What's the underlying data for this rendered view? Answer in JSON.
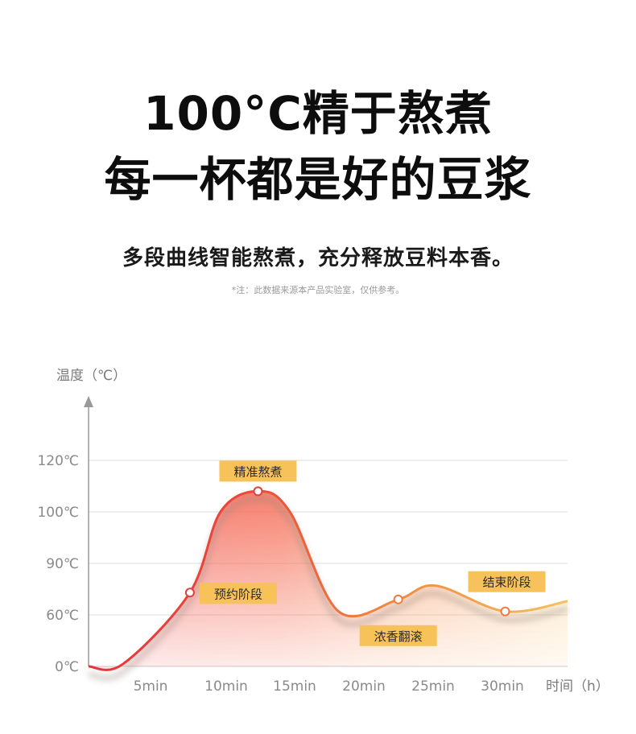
{
  "header": {
    "title_line1": "100°C精于熬煮",
    "title_line2": "每一杯都是好的豆浆",
    "subtitle": "多段曲线智能熬煮，充分释放豆料本香。",
    "note": "*注：此数据来源本产品实验室，仅供参考。"
  },
  "chart_data": {
    "type": "line",
    "ylabel": "温度（℃）",
    "xlabel": "时间（h）",
    "y_ticks": [
      "0℃",
      "60℃",
      "90℃",
      "100℃",
      "120℃"
    ],
    "x_ticks": [
      "5min",
      "10min",
      "15min",
      "20min",
      "25min",
      "30min"
    ],
    "y_scale": "categorical (ticks evenly spaced: 0, 60, 90, 100, 120)",
    "grid": true,
    "colors": {
      "curve_start": "#e8343a",
      "curve_mid": "#f0703a",
      "curve_end": "#f5c060",
      "tag_fill": "#f8c25a",
      "grid": "#dcdcdc",
      "axis": "#9a9a9a"
    },
    "series": [
      {
        "points": [
          {
            "x": 0,
            "y": 0
          },
          {
            "x": 2.5,
            "y": 3
          },
          {
            "x": 7.3,
            "y": 73
          },
          {
            "x": 9.5,
            "y": 100
          },
          {
            "x": 12.2,
            "y": 108
          },
          {
            "x": 14.5,
            "y": 100
          },
          {
            "x": 18.0,
            "y": 62
          },
          {
            "x": 22.3,
            "y": 69
          },
          {
            "x": 25.0,
            "y": 77
          },
          {
            "x": 30.0,
            "y": 62
          },
          {
            "x": 34.5,
            "y": 68
          }
        ]
      }
    ],
    "annotations": [
      {
        "label": "精准熬煮",
        "x": 12.2,
        "y": 108
      },
      {
        "label": "预约阶段",
        "x": 7.3,
        "y": 73
      },
      {
        "label": "浓香翻滚",
        "x": 22.3,
        "y": 69
      },
      {
        "label": "结束阶段",
        "x": 30.0,
        "y": 62
      }
    ]
  }
}
